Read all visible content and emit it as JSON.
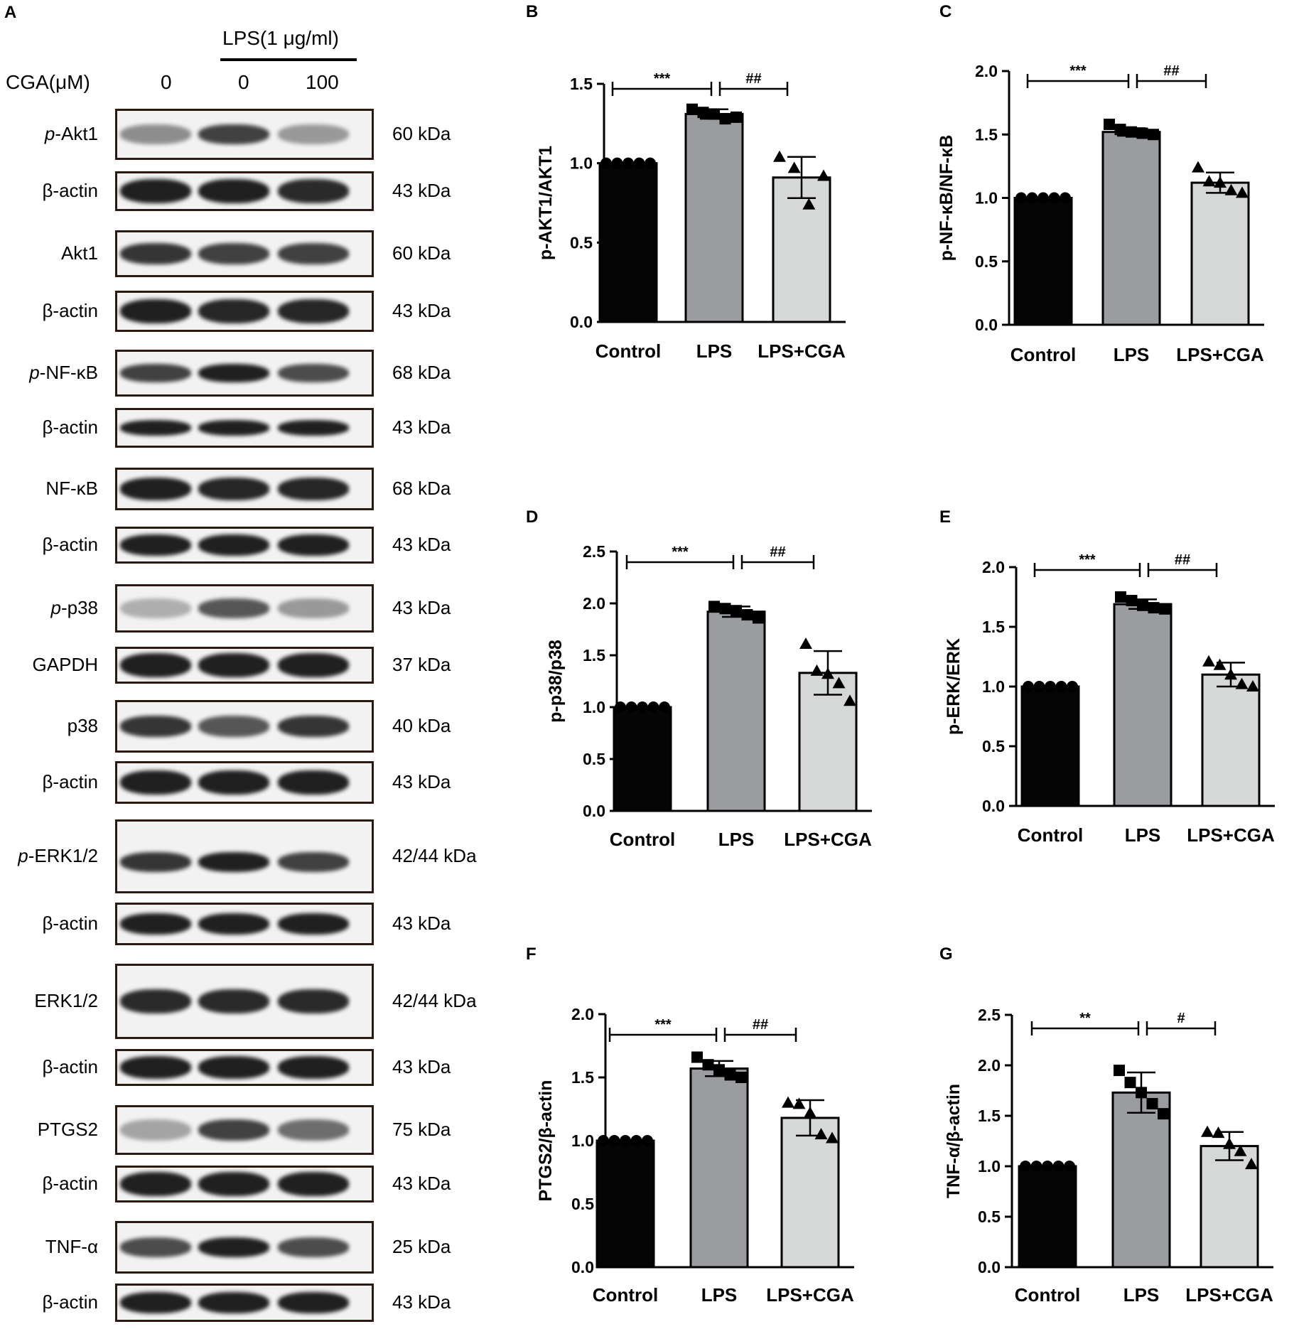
{
  "panel_a": {
    "letter": "A",
    "treatment_header": "LPS(1 μg/ml)",
    "cga_label": "CGA(μM)",
    "cga_doses": [
      "0",
      "0",
      "100"
    ],
    "blots": [
      {
        "prefix": "p",
        "name": "-Akt1",
        "kda": "60 kDa",
        "intensity": [
          0.45,
          0.8,
          0.4
        ]
      },
      {
        "prefix": "",
        "name": "β-actin",
        "kda": "43 kDa",
        "intensity": [
          0.95,
          0.95,
          0.9
        ]
      },
      {
        "prefix": "",
        "name": "Akt1",
        "kda": "60 kDa",
        "intensity": [
          0.85,
          0.8,
          0.8
        ]
      },
      {
        "prefix": "",
        "name": "β-actin",
        "kda": "43 kDa",
        "intensity": [
          0.95,
          0.92,
          0.92
        ]
      },
      {
        "prefix": "p",
        "name": "-NF-κB",
        "kda": "68 kDa",
        "intensity": [
          0.8,
          0.95,
          0.75
        ]
      },
      {
        "prefix": "",
        "name": "β-actin",
        "kda": "43 kDa",
        "intensity": [
          0.95,
          0.95,
          0.95
        ]
      },
      {
        "prefix": "",
        "name": "NF-κB",
        "kda": "68 kDa",
        "intensity": [
          0.95,
          0.92,
          0.92
        ]
      },
      {
        "prefix": "",
        "name": "β-actin",
        "kda": "43 kDa",
        "intensity": [
          0.95,
          0.95,
          0.95
        ]
      },
      {
        "prefix": "p",
        "name": "-p38",
        "kda": "43 kDa",
        "intensity": [
          0.3,
          0.7,
          0.4
        ]
      },
      {
        "prefix": "",
        "name": "GAPDH",
        "kda": "37 kDa",
        "intensity": [
          0.95,
          0.95,
          0.95
        ]
      },
      {
        "prefix": "",
        "name": "p38",
        "kda": "40 kDa",
        "intensity": [
          0.85,
          0.7,
          0.85
        ]
      },
      {
        "prefix": "",
        "name": "β-actin",
        "kda": "43 kDa",
        "intensity": [
          0.95,
          0.95,
          0.95
        ]
      },
      {
        "prefix": "p",
        "name": "-ERK1/2",
        "kda": "42/44 kDa",
        "intensity": [
          0.85,
          0.95,
          0.8
        ]
      },
      {
        "prefix": "",
        "name": "β-actin",
        "kda": "43 kDa",
        "intensity": [
          0.95,
          0.95,
          0.95
        ]
      },
      {
        "prefix": "",
        "name": "ERK1/2",
        "kda": "42/44 kDa",
        "intensity": [
          0.9,
          0.9,
          0.9
        ]
      },
      {
        "prefix": "",
        "name": "β-actin",
        "kda": "43 kDa",
        "intensity": [
          0.95,
          0.95,
          0.95
        ]
      },
      {
        "prefix": "",
        "name": "PTGS2",
        "kda": "75 kDa",
        "intensity": [
          0.35,
          0.8,
          0.6
        ]
      },
      {
        "prefix": "",
        "name": "β-actin",
        "kda": "43 kDa",
        "intensity": [
          0.95,
          0.95,
          0.95
        ]
      },
      {
        "prefix": "",
        "name": "TNF-α",
        "kda": "25 kDa",
        "intensity": [
          0.75,
          0.95,
          0.75
        ]
      },
      {
        "prefix": "",
        "name": "β-actin",
        "kda": "43 kDa",
        "intensity": [
          0.95,
          0.95,
          0.95
        ]
      }
    ]
  },
  "chart_data": [
    {
      "panel": "B",
      "type": "bar",
      "categories": [
        "Control",
        "LPS",
        "LPS+CGA"
      ],
      "values": [
        1.0,
        1.31,
        0.91
      ],
      "errors": [
        0.0,
        0.03,
        0.13
      ],
      "points": [
        [
          1.0,
          1.0,
          1.0,
          1.0,
          1.0
        ],
        [
          1.34,
          1.32,
          1.31,
          1.28,
          1.29
        ],
        [
          1.04,
          0.97,
          0.74,
          0.92
        ]
      ],
      "markers": [
        "circle",
        "square",
        "triangle"
      ],
      "ylabel": "p-AKT1/AKT1",
      "ylim": [
        0,
        1.5
      ],
      "yticks": [
        "0.0",
        "0.5",
        "1.0",
        "1.5"
      ],
      "significance": [
        "***",
        "##"
      ]
    },
    {
      "panel": "C",
      "type": "bar",
      "categories": [
        "Control",
        "LPS",
        "LPS+CGA"
      ],
      "values": [
        1.0,
        1.52,
        1.12
      ],
      "errors": [
        0.0,
        0.03,
        0.08
      ],
      "points": [
        [
          1.0,
          1.0,
          1.0,
          1.0,
          1.0
        ],
        [
          1.58,
          1.54,
          1.52,
          1.51,
          1.5
        ],
        [
          1.24,
          1.13,
          1.12,
          1.06,
          1.04
        ]
      ],
      "markers": [
        "circle",
        "square",
        "triangle"
      ],
      "ylabel": "p-NF-κB/NF-κB",
      "ylim": [
        0,
        2.0
      ],
      "yticks": [
        "0.0",
        "0.5",
        "1.0",
        "1.5",
        "2.0"
      ],
      "significance": [
        "***",
        "##"
      ]
    },
    {
      "panel": "D",
      "type": "bar",
      "categories": [
        "Control",
        "LPS",
        "LPS+CGA"
      ],
      "values": [
        1.0,
        1.92,
        1.33
      ],
      "errors": [
        0.0,
        0.05,
        0.21
      ],
      "points": [
        [
          1.0,
          1.0,
          1.0,
          1.0,
          1.0
        ],
        [
          1.97,
          1.95,
          1.93,
          1.89,
          1.86
        ],
        [
          1.61,
          1.35,
          1.32,
          1.23,
          1.06
        ]
      ],
      "markers": [
        "circle",
        "square",
        "triangle"
      ],
      "ylabel": "p-p38/p38",
      "ylim": [
        0,
        2.5
      ],
      "yticks": [
        "0.0",
        "0.5",
        "1.0",
        "1.5",
        "2.0",
        "2.5"
      ],
      "significance": [
        "***",
        "##"
      ]
    },
    {
      "panel": "E",
      "type": "bar",
      "categories": [
        "Control",
        "LPS",
        "LPS+CGA"
      ],
      "values": [
        1.0,
        1.69,
        1.1
      ],
      "errors": [
        0.0,
        0.04,
        0.1
      ],
      "points": [
        [
          1.0,
          1.0,
          1.0,
          1.0,
          1.0
        ],
        [
          1.75,
          1.72,
          1.68,
          1.66,
          1.65
        ],
        [
          1.21,
          1.18,
          1.1,
          1.02,
          1.0
        ]
      ],
      "markers": [
        "circle",
        "square",
        "triangle"
      ],
      "ylabel": "p-ERK/ERK",
      "ylim": [
        0,
        2.0
      ],
      "yticks": [
        "0.0",
        "0.5",
        "1.0",
        "1.5",
        "2.0"
      ],
      "significance": [
        "***",
        "##"
      ]
    },
    {
      "panel": "F",
      "type": "bar",
      "categories": [
        "Control",
        "LPS",
        "LPS+CGA"
      ],
      "values": [
        1.0,
        1.57,
        1.18
      ],
      "errors": [
        0.0,
        0.06,
        0.14
      ],
      "points": [
        [
          1.0,
          1.0,
          1.0,
          1.0,
          1.0
        ],
        [
          1.66,
          1.6,
          1.56,
          1.52,
          1.5
        ],
        [
          1.3,
          1.29,
          1.22,
          1.05,
          1.02
        ]
      ],
      "markers": [
        "circle",
        "square",
        "triangle"
      ],
      "ylabel": "PTGS2/β-actin",
      "ylim": [
        0,
        2.0
      ],
      "yticks": [
        "0.0",
        "0.5",
        "1.0",
        "1.5",
        "2.0"
      ],
      "significance": [
        "***",
        "##"
      ]
    },
    {
      "panel": "G",
      "type": "bar",
      "categories": [
        "Control",
        "LPS",
        "LPS+CGA"
      ],
      "values": [
        1.0,
        1.73,
        1.2
      ],
      "errors": [
        0.0,
        0.2,
        0.14
      ],
      "points": [
        [
          1.0,
          1.0,
          1.0,
          1.0,
          1.0
        ],
        [
          1.95,
          1.83,
          1.73,
          1.62,
          1.52
        ],
        [
          1.34,
          1.33,
          1.22,
          1.15,
          1.02
        ]
      ],
      "markers": [
        "circle",
        "square",
        "triangle"
      ],
      "ylabel": "TNF-α/β-actin",
      "ylim": [
        0,
        2.5
      ],
      "yticks": [
        "0.0",
        "0.5",
        "1.0",
        "1.5",
        "2.0",
        "2.5"
      ],
      "significance": [
        "**",
        "#"
      ]
    }
  ],
  "colors": {
    "control": "#050505",
    "lps": "#9a9ca0",
    "lps_cga": "#d6d8d8",
    "band": "#151515"
  }
}
